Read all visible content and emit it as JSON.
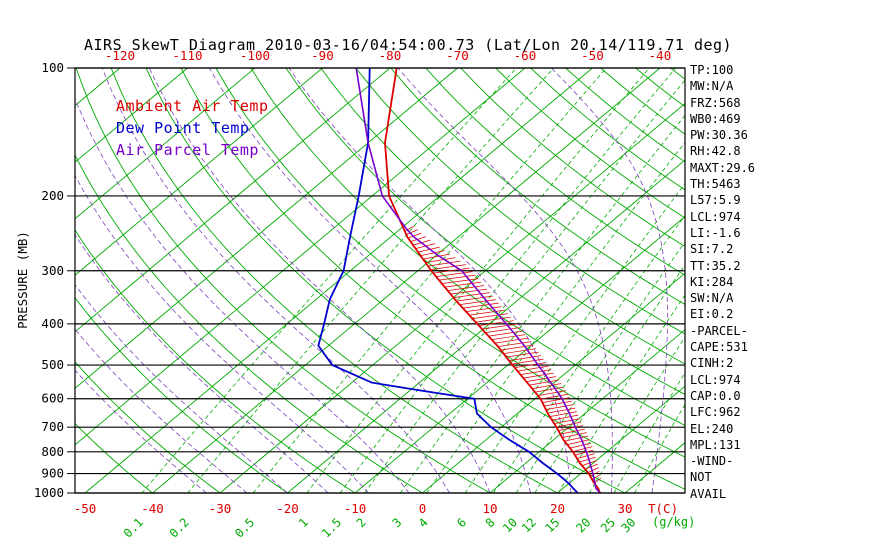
{
  "title": "AIRS SkewT Diagram 2010-03-16/04:54:00.73 (Lat/Lon 20.14/119.71 deg)",
  "legend": [
    {
      "label": "Ambient Air Temp",
      "color": "#dd0000"
    },
    {
      "label": "Dew Point Temp",
      "color": "#0000cc"
    },
    {
      "label": "Air Parcel Temp",
      "color": "#7a00cc"
    }
  ],
  "stats": [
    "TP:100",
    "MW:N/A",
    "FRZ:568",
    "WB0:469",
    "PW:30.36",
    "RH:42.8",
    "MAXT:29.6",
    "TH:5463",
    "L57:5.9",
    "LCL:974",
    "LI:-1.6",
    "SI:7.2",
    "TT:35.2",
    "KI:284",
    "SW:N/A",
    "EI:0.2",
    "-PARCEL-",
    "CAPE:531",
    "CINH:2",
    "LCL:974",
    "CAP:0.0",
    "LFC:962",
    "EL:240",
    "MPL:131",
    "-WIND-",
    "NOT",
    "AVAIL"
  ],
  "chart_data": {
    "type": "line",
    "title": "AIRS SkewT Diagram 2010-03-16/04:54:00.73 (Lat/Lon 20.14/119.71 deg)",
    "x_axis": {
      "label": "T(C)",
      "top_ticks": [
        -120,
        -110,
        -100,
        -90,
        -80,
        -70,
        -60,
        -50,
        -40
      ],
      "bottom_ticks": [
        -50,
        -40,
        -30,
        -20,
        -10,
        0,
        10,
        20,
        30
      ],
      "mixing_ratio_values": [
        0.1,
        0.2,
        0.5,
        1,
        1.5,
        2,
        3,
        4,
        6,
        8,
        10,
        12,
        15,
        20,
        25,
        30
      ],
      "mixing_ratio_unit": "(g/kg)"
    },
    "y_axis": {
      "label": "PRESSURE (MB)",
      "scale": "log",
      "ticks": [
        100,
        200,
        300,
        400,
        500,
        600,
        700,
        800,
        900,
        1000
      ],
      "range": [
        100,
        1000
      ]
    },
    "series": [
      {
        "name": "Ambient Air Temp",
        "color": "#dd0000",
        "points": [
          [
            1000,
            26.3
          ],
          [
            975,
            25.2
          ],
          [
            950,
            23.8
          ],
          [
            925,
            22.5
          ],
          [
            900,
            21.2
          ],
          [
            850,
            18.0
          ],
          [
            800,
            15.0
          ],
          [
            750,
            11.5
          ],
          [
            700,
            8.2
          ],
          [
            650,
            4.5
          ],
          [
            600,
            0.8
          ],
          [
            550,
            -4.0
          ],
          [
            500,
            -9.3
          ],
          [
            450,
            -15.0
          ],
          [
            400,
            -21.8
          ],
          [
            350,
            -29.5
          ],
          [
            300,
            -38.0
          ],
          [
            250,
            -47.5
          ],
          [
            200,
            -57.5
          ],
          [
            150,
            -67.5
          ],
          [
            100,
            -79.0
          ]
        ]
      },
      {
        "name": "Dew Point Temp",
        "color": "#0000cc",
        "points": [
          [
            1000,
            23.0
          ],
          [
            975,
            21.5
          ],
          [
            950,
            20.0
          ],
          [
            925,
            18.3
          ],
          [
            900,
            16.5
          ],
          [
            850,
            12.5
          ],
          [
            800,
            8.5
          ],
          [
            750,
            3.5
          ],
          [
            700,
            -1.5
          ],
          [
            650,
            -6.0
          ],
          [
            600,
            -9.0
          ],
          [
            575,
            -18.0
          ],
          [
            550,
            -27.0
          ],
          [
            500,
            -36.0
          ],
          [
            450,
            -41.5
          ],
          [
            400,
            -44.5
          ],
          [
            350,
            -48.0
          ],
          [
            300,
            -51.0
          ],
          [
            250,
            -56.0
          ],
          [
            200,
            -62.0
          ],
          [
            150,
            -70.0
          ],
          [
            100,
            -83.0
          ]
        ]
      },
      {
        "name": "Air Parcel Temp",
        "color": "#7a00cc",
        "points": [
          [
            1000,
            26.3
          ],
          [
            974,
            24.8
          ],
          [
            950,
            23.9
          ],
          [
            900,
            21.8
          ],
          [
            850,
            19.5
          ],
          [
            800,
            17.0
          ],
          [
            750,
            14.2
          ],
          [
            700,
            11.0
          ],
          [
            650,
            7.7
          ],
          [
            600,
            4.0
          ],
          [
            550,
            -0.5
          ],
          [
            500,
            -5.5
          ],
          [
            450,
            -11.0
          ],
          [
            400,
            -17.5
          ],
          [
            350,
            -25.0
          ],
          [
            300,
            -33.5
          ],
          [
            275,
            -40.0
          ],
          [
            250,
            -46.5
          ],
          [
            240,
            -48.9
          ],
          [
            200,
            -58.5
          ],
          [
            150,
            -70.0
          ],
          [
            100,
            -85.0
          ]
        ]
      }
    ],
    "hatch_region": {
      "between": [
        "Air Parcel Temp",
        "Ambient Air Temp"
      ],
      "pressure_range": [
        955,
        242
      ],
      "color": "#dd0000"
    },
    "background": {
      "isotherms": {
        "min": -130,
        "max": 40,
        "step": 10,
        "color": "#00aa00"
      },
      "dry_adiabats": {
        "min": -40,
        "max": 200,
        "step": 10,
        "color": "#00aa00"
      },
      "moist_adiabats": {
        "surface_temps": [
          -32,
          -26,
          -20,
          -14,
          -8,
          -2,
          4,
          10,
          16,
          22,
          28,
          34,
          40
        ],
        "color": "#8040c0"
      },
      "mixing_ratio_color": "#00aa00",
      "pressure_line_color": "#000000",
      "frame_color": "#000000",
      "temp_label_color": "#dd0000",
      "pressure_label_color": "#000000"
    }
  }
}
